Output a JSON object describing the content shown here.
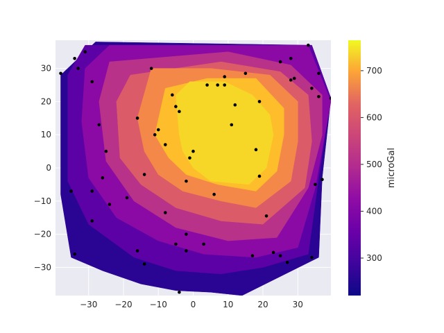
{
  "chart_data": {
    "type": "contour",
    "title": "",
    "xlabel": "",
    "ylabel": "",
    "xlim": [
      -39.5,
      39.5
    ],
    "ylim": [
      -38.5,
      38.5
    ],
    "xticks": [
      -30,
      -20,
      -10,
      0,
      10,
      20,
      30
    ],
    "yticks": [
      -30,
      -20,
      -10,
      0,
      10,
      20,
      30
    ],
    "xtick_labels": [
      "−30",
      "−20",
      "−10",
      "0",
      "10",
      "20",
      "30"
    ],
    "ytick_labels": [
      "−30",
      "−20",
      "−10",
      "0",
      "10",
      "20",
      "30"
    ],
    "grid": true,
    "colormap": "plasma",
    "colorbar": {
      "label": "microGal",
      "range": [
        220,
        765
      ],
      "ticks": [
        300,
        400,
        500,
        600,
        700
      ],
      "tick_labels": [
        "300",
        "400",
        "500",
        "600",
        "700"
      ]
    },
    "contour_levels": [
      220,
      280,
      340,
      400,
      460,
      520,
      580,
      640,
      700,
      760
    ],
    "contour_fill_colors": [
      "#2a0593",
      "#5c01a6",
      "#8b0aa5",
      "#b83289",
      "#db5c68",
      "#f48849",
      "#febd2a",
      "#f6d626"
    ],
    "regions": [
      {
        "level": 280,
        "outline": [
          [
            -38,
            -8
          ],
          [
            -35,
            -27
          ],
          [
            -26,
            -31
          ],
          [
            -15,
            -35
          ],
          [
            -5,
            -37
          ],
          [
            5,
            -37.5
          ],
          [
            14,
            -38.5
          ],
          [
            36,
            -27
          ],
          [
            37,
            -3
          ],
          [
            39.5,
            21
          ],
          [
            34,
            37
          ],
          [
            -28,
            38
          ],
          [
            -38,
            28
          ]
        ]
      },
      {
        "level": 340,
        "outline": [
          [
            -36,
            28
          ],
          [
            -36,
            -4
          ],
          [
            -30,
            -17
          ],
          [
            -17,
            -27
          ],
          [
            -5,
            -31
          ],
          [
            8,
            -32
          ],
          [
            20,
            -30
          ],
          [
            33,
            -26
          ],
          [
            36,
            -3
          ],
          [
            39.5,
            21
          ],
          [
            34,
            37
          ],
          [
            -31,
            37
          ]
        ]
      },
      {
        "level": 400,
        "outline": [
          [
            -31,
            30
          ],
          [
            -32,
            14
          ],
          [
            -30,
            -3
          ],
          [
            -22,
            -15
          ],
          [
            -10,
            -22
          ],
          [
            3,
            -26
          ],
          [
            18,
            -27
          ],
          [
            30,
            -24
          ],
          [
            35,
            -6
          ],
          [
            39.5,
            20
          ],
          [
            33,
            37
          ],
          [
            -24,
            37
          ]
        ]
      },
      {
        "level": 460,
        "outline": [
          [
            -24,
            32
          ],
          [
            -27,
            20
          ],
          [
            -25,
            2
          ],
          [
            -17,
            -10
          ],
          [
            -5,
            -18
          ],
          [
            10,
            -22
          ],
          [
            24,
            -21
          ],
          [
            33,
            -6
          ],
          [
            37,
            10
          ],
          [
            37,
            22
          ],
          [
            28,
            31
          ],
          [
            10,
            35
          ]
        ]
      },
      {
        "level": 520,
        "outline": [
          [
            -18,
            28
          ],
          [
            -22,
            20
          ],
          [
            -21,
            3
          ],
          [
            -15,
            -5
          ],
          [
            -5,
            -12
          ],
          [
            8,
            -16
          ],
          [
            20,
            -17
          ],
          [
            32,
            -6
          ],
          [
            34,
            8
          ],
          [
            33,
            22
          ],
          [
            25,
            29
          ],
          [
            8,
            32
          ]
        ]
      },
      {
        "level": 580,
        "outline": [
          [
            -12,
            30
          ],
          [
            -16,
            15
          ],
          [
            -14,
            5
          ],
          [
            -10,
            -2
          ],
          [
            -3,
            -7
          ],
          [
            8,
            -10
          ],
          [
            18,
            -12
          ],
          [
            28,
            -4
          ],
          [
            30,
            8
          ],
          [
            30,
            20
          ],
          [
            22,
            28
          ],
          [
            5,
            30
          ]
        ]
      },
      {
        "level": 640,
        "outline": [
          [
            -8,
            24
          ],
          [
            -11,
            10
          ],
          [
            -7,
            3
          ],
          [
            -2,
            -2
          ],
          [
            7,
            -5
          ],
          [
            18,
            -7
          ],
          [
            24,
            -1
          ],
          [
            26,
            10
          ],
          [
            26,
            18
          ],
          [
            18,
            27
          ],
          [
            4,
            27
          ]
        ]
      },
      {
        "level": 700,
        "outline": [
          [
            -5,
            22
          ],
          [
            -4,
            10
          ],
          [
            -3,
            5
          ],
          [
            0,
            0
          ],
          [
            5,
            -4
          ],
          [
            16,
            -5
          ],
          [
            21,
            0
          ],
          [
            23,
            10
          ],
          [
            22,
            16
          ],
          [
            17,
            22
          ],
          [
            9,
            26
          ],
          [
            -1,
            26
          ]
        ]
      }
    ],
    "points": [
      [
        -38,
        28.5
      ],
      [
        -34,
        33
      ],
      [
        -33,
        30
      ],
      [
        -31,
        35
      ],
      [
        -29,
        26
      ],
      [
        -27,
        13
      ],
      [
        -26,
        -3
      ],
      [
        -25,
        5
      ],
      [
        -24,
        -11
      ],
      [
        -35,
        -7
      ],
      [
        -34,
        -26
      ],
      [
        -29,
        -16
      ],
      [
        -29,
        -7
      ],
      [
        -19,
        -9
      ],
      [
        -16,
        -25
      ],
      [
        -14,
        -29
      ],
      [
        -14,
        -2
      ],
      [
        -16,
        15
      ],
      [
        -12,
        30
      ],
      [
        -11,
        10
      ],
      [
        -10,
        11.5
      ],
      [
        -8,
        7
      ],
      [
        -8,
        -13.5
      ],
      [
        -5,
        -23
      ],
      [
        -5,
        18.5
      ],
      [
        -4,
        17
      ],
      [
        -6,
        22
      ],
      [
        -4,
        -37.5
      ],
      [
        -2,
        -4
      ],
      [
        -2,
        -20
      ],
      [
        -2,
        -25
      ],
      [
        -1,
        3
      ],
      [
        0,
        5
      ],
      [
        3,
        -23
      ],
      [
        4,
        25
      ],
      [
        6,
        -8
      ],
      [
        7,
        25
      ],
      [
        9,
        25
      ],
      [
        9,
        27.5
      ],
      [
        11,
        13
      ],
      [
        12,
        19
      ],
      [
        15,
        28.5
      ],
      [
        17,
        -26.5
      ],
      [
        18,
        5.5
      ],
      [
        19,
        -2.5
      ],
      [
        19,
        20
      ],
      [
        21,
        -14.5
      ],
      [
        23,
        -25.5
      ],
      [
        25,
        -26.5
      ],
      [
        25,
        32
      ],
      [
        27,
        -28.5
      ],
      [
        28,
        26.5
      ],
      [
        28,
        33
      ],
      [
        29,
        27
      ],
      [
        33,
        37
      ],
      [
        34,
        24
      ],
      [
        34,
        -27
      ],
      [
        35,
        -5
      ],
      [
        36,
        28.5
      ],
      [
        36,
        21.5
      ],
      [
        37,
        -3.5
      ],
      [
        39.5,
        21
      ]
    ]
  }
}
